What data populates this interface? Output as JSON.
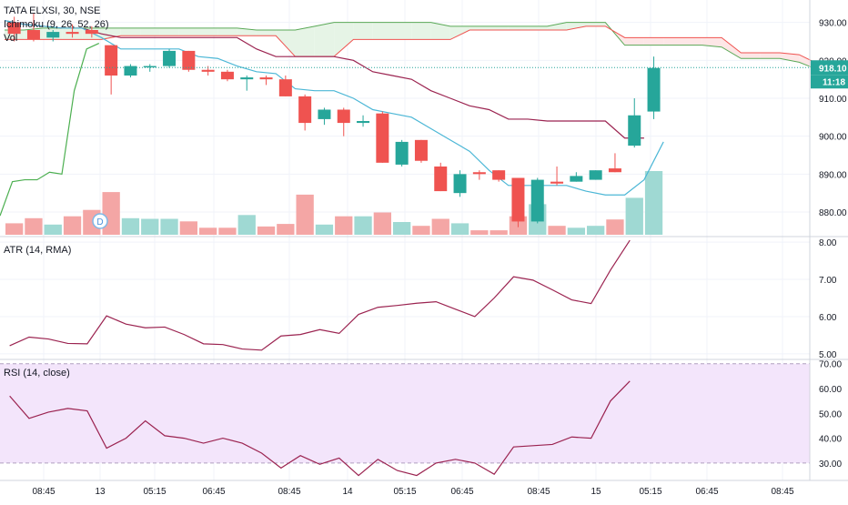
{
  "chart_data": [
    {
      "type": "candlestick",
      "title": "TATA ELXSI, 30, NSE",
      "interval": "30",
      "exchange": "NSE",
      "price_scale": {
        "ylim": [
          874,
          934
        ],
        "ticks": [
          880,
          890,
          900,
          910,
          920,
          930
        ],
        "tick_labels": [
          "880.00",
          "890.00",
          "900.00",
          "910.00",
          "920.00",
          "930.00"
        ]
      },
      "last_price": {
        "value": 918.1,
        "label": "918.10",
        "countdown": "11:18"
      },
      "indicators": [
        "Ichimoku (9, 26, 52, 26)",
        "Vol"
      ],
      "ohlc": [
        {
          "o": 930.0,
          "h": 931.5,
          "c": 927.0,
          "l": 925.0
        },
        {
          "o": 928.0,
          "h": 932.5,
          "c": 925.5,
          "l": 925.0
        },
        {
          "o": 926.0,
          "h": 928.0,
          "c": 927.5,
          "l": 925.0
        },
        {
          "o": 927.5,
          "h": 929.5,
          "c": 927.0,
          "l": 926.0
        },
        {
          "o": 928.0,
          "h": 929.0,
          "c": 927.0,
          "l": 926.0
        },
        {
          "o": 924.0,
          "h": 924.0,
          "c": 916.0,
          "l": 911.0
        },
        {
          "o": 916.0,
          "h": 919.0,
          "c": 918.5,
          "l": 915.5
        },
        {
          "o": 918.5,
          "h": 919.0,
          "c": 918.5,
          "l": 917.0
        },
        {
          "o": 918.5,
          "h": 923.0,
          "c": 922.5,
          "l": 918.0
        },
        {
          "o": 922.5,
          "h": 922.5,
          "c": 917.5,
          "l": 917.0
        },
        {
          "o": 917.5,
          "h": 918.5,
          "c": 917.0,
          "l": 916.0
        },
        {
          "o": 917.0,
          "h": 917.5,
          "c": 915.0,
          "l": 914.5
        },
        {
          "o": 915.0,
          "h": 916.0,
          "c": 915.5,
          "l": 912.0
        },
        {
          "o": 915.5,
          "h": 916.0,
          "c": 915.0,
          "l": 913.5
        },
        {
          "o": 915.0,
          "h": 916.0,
          "c": 910.5,
          "l": 910.5
        },
        {
          "o": 910.5,
          "h": 911.0,
          "c": 903.5,
          "l": 901.5
        },
        {
          "o": 904.5,
          "h": 907.5,
          "c": 907.0,
          "l": 903.0
        },
        {
          "o": 907.0,
          "h": 907.5,
          "c": 903.5,
          "l": 900.0
        },
        {
          "o": 903.5,
          "h": 905.5,
          "c": 904.0,
          "l": 902.5
        },
        {
          "o": 906.0,
          "h": 906.5,
          "c": 893.0,
          "l": 893.0
        },
        {
          "o": 892.5,
          "h": 899.0,
          "c": 898.5,
          "l": 892.0
        },
        {
          "o": 899.0,
          "h": 899.0,
          "c": 893.5,
          "l": 893.0
        },
        {
          "o": 892.0,
          "h": 893.0,
          "c": 885.5,
          "l": 885.5
        },
        {
          "o": 885.0,
          "h": 891.0,
          "c": 890.0,
          "l": 884.0
        },
        {
          "o": 890.5,
          "h": 891.0,
          "c": 890.0,
          "l": 888.5
        },
        {
          "o": 891.0,
          "h": 891.0,
          "c": 888.5,
          "l": 888.0
        },
        {
          "o": 889.0,
          "h": 889.0,
          "c": 877.5,
          "l": 876.0
        },
        {
          "o": 877.5,
          "h": 889.0,
          "c": 888.5,
          "l": 877.0
        },
        {
          "o": 888.0,
          "h": 892.0,
          "c": 887.5,
          "l": 887.0
        },
        {
          "o": 888.0,
          "h": 890.5,
          "c": 889.5,
          "l": 888.0
        },
        {
          "o": 888.5,
          "h": 891.0,
          "c": 891.0,
          "l": 888.5
        },
        {
          "o": 891.5,
          "h": 895.5,
          "c": 890.5,
          "l": 890.5
        },
        {
          "o": 897.5,
          "h": 910.0,
          "c": 905.5,
          "l": 897.0
        },
        {
          "o": 906.5,
          "h": 921.0,
          "c": 918.0,
          "l": 904.5
        }
      ],
      "volume": [
        0.18,
        0.26,
        0.16,
        0.29,
        0.39,
        0.67,
        0.26,
        0.25,
        0.25,
        0.21,
        0.11,
        0.11,
        0.31,
        0.13,
        0.17,
        0.63,
        0.16,
        0.29,
        0.29,
        0.35,
        0.2,
        0.14,
        0.25,
        0.18,
        0.07,
        0.07,
        0.29,
        0.48,
        0.14,
        0.11,
        0.14,
        0.24,
        0.58,
        1.0
      ],
      "ichimoku": {
        "conversion": [
          930.5,
          929.5,
          929.0,
          928.5,
          928.5,
          926.0,
          923.0,
          923.0,
          923.0,
          923.0,
          921.0,
          920.5,
          918.5,
          917.0,
          916.5,
          912.5,
          912.0,
          912.0,
          910.0,
          907.0,
          906.0,
          905.0,
          902.0,
          899.0,
          896.0,
          891.0,
          887.0,
          887.0,
          887.0,
          887.0,
          885.5,
          884.5,
          884.5,
          888.5,
          898.5
        ],
        "base": [
          930.5,
          929.5,
          929.0,
          928.5,
          928.5,
          927.0,
          926.0,
          926.0,
          926.0,
          926.0,
          926.0,
          926.0,
          926.0,
          923.0,
          921.0,
          921.0,
          921.0,
          921.0,
          920.0,
          917.0,
          916.0,
          915.0,
          912.0,
          910.0,
          908.0,
          907.0,
          904.5,
          904.5,
          904.0,
          904.0,
          904.0,
          904.0,
          899.5,
          899.5
        ],
        "lagging": [
          879.0,
          888.0,
          888.5,
          888.5,
          890.5,
          890.0,
          912.0,
          923.0,
          924.5
        ],
        "senkou_a": [
          928.0,
          928.0,
          928.5,
          928.5,
          928.5,
          928.5,
          928.5,
          928.5,
          928.5,
          928.5,
          928.5,
          928.5,
          928.5,
          928.0,
          928.0,
          928.0,
          929.0,
          930.0,
          930.0,
          930.0,
          930.0,
          930.0,
          930.0,
          929.0,
          929.0,
          929.0,
          929.0,
          929.0,
          929.0,
          930.0,
          930.0,
          930.0,
          924.0,
          924.0,
          924.0,
          924.0,
          924.0,
          923.5,
          920.5,
          920.5,
          920.5,
          919.5,
          917.5
        ],
        "senkou_b": [
          925.5,
          925.5,
          925.5,
          925.5,
          925.5,
          925.5,
          926.5,
          926.5,
          926.5,
          926.5,
          926.5,
          926.5,
          926.5,
          926.5,
          926.5,
          921.0,
          921.0,
          921.0,
          925.5,
          925.5,
          925.5,
          925.5,
          925.5,
          925.5,
          928.0,
          928.0,
          928.0,
          928.0,
          928.0,
          928.0,
          929.0,
          929.0,
          926.0,
          926.0,
          926.0,
          926.0,
          926.0,
          926.0,
          922.0,
          922.0,
          922.0,
          921.5,
          919.0
        ]
      }
    },
    {
      "type": "line",
      "title": "ATR (14, RMA)",
      "ylim": [
        4.9,
        8.1
      ],
      "ticks": [
        5,
        6,
        7,
        8
      ],
      "tick_labels": [
        "5.00",
        "6.00",
        "7.00",
        "8.00"
      ],
      "values": [
        5.22,
        5.45,
        5.4,
        5.28,
        5.27,
        6.02,
        5.8,
        5.7,
        5.72,
        5.52,
        5.27,
        5.25,
        5.13,
        5.1,
        5.48,
        5.52,
        5.65,
        5.55,
        6.06,
        6.25,
        6.3,
        6.36,
        6.4,
        6.2,
        6.0,
        6.5,
        7.07,
        6.98,
        6.72,
        6.45,
        6.35,
        7.25,
        8.05
      ]
    },
    {
      "type": "line",
      "title": "RSI (14, close)",
      "ylim": [
        23,
        71
      ],
      "ticks": [
        30,
        40,
        50,
        60,
        70
      ],
      "tick_labels": [
        "30.00",
        "40.00",
        "50.00",
        "60.00",
        "70.00"
      ],
      "bands": [
        30,
        70
      ],
      "values": [
        57.0,
        48.0,
        50.5,
        52.0,
        51.0,
        36.0,
        40.0,
        47.0,
        41.0,
        40.0,
        38.0,
        40.0,
        38.0,
        34.0,
        28.0,
        33.0,
        29.5,
        32.0,
        25.0,
        31.5,
        27.0,
        25.0,
        30.0,
        31.5,
        30.0,
        25.5,
        36.5,
        37.0,
        37.5,
        40.5,
        40.0,
        55.0,
        63.0
      ]
    }
  ],
  "time_axis": {
    "labels": [
      "08:45",
      "13",
      "05:15",
      "06:45",
      "08:45",
      "14",
      "05:15",
      "06:45",
      "08:45",
      "15",
      "05:15",
      "06:45",
      "08:45"
    ]
  },
  "legend": {
    "title": "TATA ELXSI, 30, NSE",
    "ichimoku": "Ichimoku (9, 26, 52, 26)",
    "volume": "Vol",
    "atr": "ATR (14, RMA)",
    "rsi": "RSI (14, close)",
    "dividend_marker": "D"
  },
  "colors": {
    "up": "#26a69a",
    "down": "#ef5350",
    "vol_up": "#9fd9d3",
    "vol_down": "#f4a6a5",
    "conversion": "#4cb7d6",
    "base": "#9b2350",
    "lagging": "#4caf50",
    "senkou_a": "#5aa957",
    "senkou_b": "#ef5350",
    "cloud_green": "#e6f4e6",
    "cloud_red": "#fde6e6",
    "atr": "#9b2350",
    "rsi": "#9b2350",
    "rsi_band": "#f3e5fb",
    "price_line": "#26a69a"
  }
}
